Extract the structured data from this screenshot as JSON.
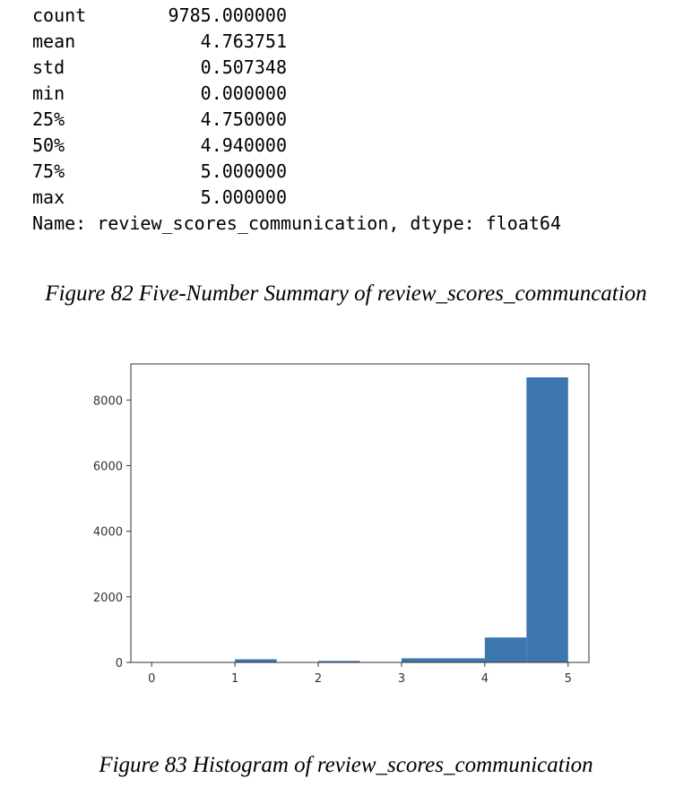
{
  "summary": {
    "rows": [
      {
        "key": "count",
        "value": "9785.000000"
      },
      {
        "key": "mean",
        "value": "4.763751"
      },
      {
        "key": "std",
        "value": "0.507348"
      },
      {
        "key": "min",
        "value": "0.000000"
      },
      {
        "key": "25%",
        "value": "4.750000"
      },
      {
        "key": "50%",
        "value": "4.940000"
      },
      {
        "key": "75%",
        "value": "5.000000"
      },
      {
        "key": "max",
        "value": "5.000000"
      }
    ],
    "footer": "Name: review_scores_communication, dtype: float64"
  },
  "caption1": "Figure 82 Five-Number Summary of review_scores_communcation",
  "caption2": "Figure 83 Histogram of review_scores_communication",
  "chart_data": {
    "type": "bar",
    "bin_edges": [
      0,
      0.5,
      1,
      1.5,
      2,
      2.5,
      3,
      3.5,
      4,
      4.5,
      5
    ],
    "values": [
      5,
      0,
      95,
      0,
      45,
      0,
      125,
      125,
      760,
      8690
    ],
    "xlim": [
      -0.25,
      5.25
    ],
    "ylim": [
      0,
      9100
    ],
    "xticks": [
      0,
      1,
      2,
      3,
      4,
      5
    ],
    "yticks": [
      0,
      2000,
      4000,
      6000,
      8000
    ],
    "bar_color": "#3d76af",
    "grid": false
  }
}
